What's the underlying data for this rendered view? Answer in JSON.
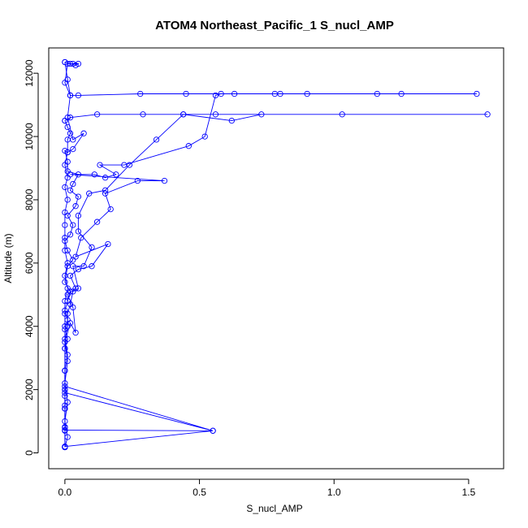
{
  "chart_data": {
    "type": "line",
    "title": "ATOM4 Northeast_Pacific_1 S_nucl_AMP",
    "xlabel": "S_nucl_AMP",
    "ylabel": "Altitude (m)",
    "xlim": [
      -0.06,
      1.63
    ],
    "ylim": [
      -500,
      12800
    ],
    "x_ticks": [
      0.0,
      0.5,
      1.0,
      1.5
    ],
    "x_tick_labels": [
      "0.0",
      "0.5",
      "1.0",
      "1.5"
    ],
    "y_ticks": [
      0,
      2000,
      4000,
      6000,
      8000,
      10000,
      12000
    ],
    "y_tick_labels": [
      "0",
      "2000",
      "4000",
      "6000",
      "8000",
      "10000",
      "12000"
    ],
    "grid": false,
    "line_color": "#0000ff",
    "marker": "open-circle",
    "series": [
      {
        "values": [
          {
            "x": 0.0,
            "y": 180
          },
          {
            "x": 0.0,
            "y": 200
          },
          {
            "x": 0.55,
            "y": 700
          },
          {
            "x": 0.0,
            "y": 720
          },
          {
            "x": 0.0,
            "y": 820
          },
          {
            "x": 0.0,
            "y": 1400
          },
          {
            "x": 0.0,
            "y": 1500
          },
          {
            "x": 0.0,
            "y": 1900
          },
          {
            "x": 0.55,
            "y": 700
          },
          {
            "x": 0.0,
            "y": 2100
          },
          {
            "x": 0.0,
            "y": 2600
          },
          {
            "x": 0.01,
            "y": 3100
          },
          {
            "x": 0.0,
            "y": 3600
          },
          {
            "x": 0.01,
            "y": 4000
          },
          {
            "x": 0.01,
            "y": 4400
          },
          {
            "x": 0.02,
            "y": 4700
          },
          {
            "x": 0.03,
            "y": 5100
          },
          {
            "x": 0.05,
            "y": 5200
          },
          {
            "x": 0.03,
            "y": 5900
          },
          {
            "x": 0.07,
            "y": 5900
          },
          {
            "x": 0.1,
            "y": 6500
          },
          {
            "x": 0.05,
            "y": 7000
          },
          {
            "x": 0.05,
            "y": 7500
          },
          {
            "x": 0.09,
            "y": 8200
          },
          {
            "x": 0.15,
            "y": 8300
          },
          {
            "x": 0.24,
            "y": 9100
          },
          {
            "x": 0.34,
            "y": 9900
          },
          {
            "x": 0.44,
            "y": 10700
          },
          {
            "x": 0.62,
            "y": 10500
          },
          {
            "x": 0.73,
            "y": 10700
          },
          {
            "x": 1.03,
            "y": 10700
          },
          {
            "x": 1.57,
            "y": 10700
          },
          {
            "x": 0.56,
            "y": 10700
          },
          {
            "x": 0.44,
            "y": 10700
          },
          {
            "x": 0.29,
            "y": 10700
          },
          {
            "x": 0.12,
            "y": 10700
          },
          {
            "x": 0.02,
            "y": 10600
          },
          {
            "x": 0.0,
            "y": 10500
          }
        ]
      },
      {
        "values": [
          {
            "x": 0.0,
            "y": 10500
          },
          {
            "x": 0.01,
            "y": 10300
          },
          {
            "x": 0.02,
            "y": 10100
          },
          {
            "x": 0.01,
            "y": 9900
          },
          {
            "x": 0.01,
            "y": 9500
          },
          {
            "x": 0.0,
            "y": 9100
          },
          {
            "x": 0.01,
            "y": 8700
          },
          {
            "x": 0.0,
            "y": 8400
          },
          {
            "x": 0.01,
            "y": 8000
          },
          {
            "x": 0.0,
            "y": 7600
          },
          {
            "x": 0.0,
            "y": 7200
          },
          {
            "x": 0.0,
            "y": 6800
          },
          {
            "x": 0.0,
            "y": 6400
          },
          {
            "x": 0.01,
            "y": 6000
          },
          {
            "x": 0.0,
            "y": 5600
          },
          {
            "x": 0.01,
            "y": 5200
          },
          {
            "x": 0.0,
            "y": 4800
          },
          {
            "x": 0.0,
            "y": 4400
          },
          {
            "x": 0.0,
            "y": 4000
          },
          {
            "x": 0.01,
            "y": 3600
          },
          {
            "x": 0.0,
            "y": 3300
          },
          {
            "x": 0.0,
            "y": 2600
          },
          {
            "x": 0.0,
            "y": 2000
          },
          {
            "x": 0.0,
            "y": 1400
          },
          {
            "x": 0.0,
            "y": 700
          },
          {
            "x": 0.0,
            "y": 180
          }
        ]
      },
      {
        "values": [
          {
            "x": 0.0,
            "y": 180
          },
          {
            "x": 0.01,
            "y": 500
          },
          {
            "x": 0.0,
            "y": 1000
          },
          {
            "x": 0.01,
            "y": 1600
          },
          {
            "x": 0.0,
            "y": 2200
          },
          {
            "x": 0.01,
            "y": 2900
          },
          {
            "x": 0.0,
            "y": 3500
          },
          {
            "x": 0.02,
            "y": 4100
          },
          {
            "x": 0.04,
            "y": 3800
          },
          {
            "x": 0.03,
            "y": 4600
          },
          {
            "x": 0.01,
            "y": 5000
          },
          {
            "x": 0.04,
            "y": 5200
          },
          {
            "x": 0.02,
            "y": 5600
          },
          {
            "x": 0.05,
            "y": 5800
          },
          {
            "x": 0.1,
            "y": 5900
          },
          {
            "x": 0.16,
            "y": 6600
          },
          {
            "x": 0.04,
            "y": 6200
          },
          {
            "x": 0.06,
            "y": 6800
          },
          {
            "x": 0.12,
            "y": 7300
          },
          {
            "x": 0.17,
            "y": 7700
          },
          {
            "x": 0.15,
            "y": 8200
          },
          {
            "x": 0.27,
            "y": 8600
          },
          {
            "x": 0.37,
            "y": 8600
          },
          {
            "x": 0.02,
            "y": 8800
          },
          {
            "x": 0.11,
            "y": 8800
          },
          {
            "x": 0.15,
            "y": 8700
          },
          {
            "x": 0.19,
            "y": 8800
          },
          {
            "x": 0.13,
            "y": 9100
          },
          {
            "x": 0.22,
            "y": 9100
          },
          {
            "x": 0.46,
            "y": 9700
          },
          {
            "x": 0.52,
            "y": 10000
          },
          {
            "x": 0.56,
            "y": 11300
          },
          {
            "x": 0.58,
            "y": 11350
          },
          {
            "x": 0.63,
            "y": 11350
          },
          {
            "x": 0.78,
            "y": 11350
          },
          {
            "x": 0.9,
            "y": 11350
          },
          {
            "x": 1.16,
            "y": 11350
          },
          {
            "x": 1.25,
            "y": 11350
          },
          {
            "x": 1.53,
            "y": 11350
          },
          {
            "x": 0.8,
            "y": 11350
          },
          {
            "x": 0.45,
            "y": 11350
          },
          {
            "x": 0.28,
            "y": 11350
          },
          {
            "x": 0.05,
            "y": 11300
          },
          {
            "x": 0.02,
            "y": 11300
          },
          {
            "x": 0.0,
            "y": 11700
          },
          {
            "x": 0.01,
            "y": 12300
          },
          {
            "x": 0.03,
            "y": 12300
          },
          {
            "x": 0.05,
            "y": 12300
          },
          {
            "x": 0.04,
            "y": 12250
          },
          {
            "x": 0.02,
            "y": 12300
          },
          {
            "x": 0.0,
            "y": 12350
          }
        ]
      },
      {
        "values": [
          {
            "x": 0.0,
            "y": 12350
          },
          {
            "x": 0.01,
            "y": 11800
          },
          {
            "x": 0.02,
            "y": 11300
          },
          {
            "x": 0.01,
            "y": 10600
          },
          {
            "x": 0.03,
            "y": 9900
          },
          {
            "x": 0.07,
            "y": 10100
          },
          {
            "x": 0.03,
            "y": 9600
          },
          {
            "x": 0.01,
            "y": 9500
          },
          {
            "x": 0.0,
            "y": 9550
          },
          {
            "x": 0.01,
            "y": 9200
          },
          {
            "x": 0.01,
            "y": 8900
          },
          {
            "x": 0.05,
            "y": 8800
          },
          {
            "x": 0.03,
            "y": 8500
          },
          {
            "x": 0.02,
            "y": 8300
          },
          {
            "x": 0.05,
            "y": 8100
          },
          {
            "x": 0.04,
            "y": 7800
          },
          {
            "x": 0.01,
            "y": 7500
          },
          {
            "x": 0.03,
            "y": 7200
          },
          {
            "x": 0.02,
            "y": 6900
          },
          {
            "x": 0.0,
            "y": 6700
          },
          {
            "x": 0.01,
            "y": 6400
          },
          {
            "x": 0.03,
            "y": 6100
          },
          {
            "x": 0.01,
            "y": 5900
          },
          {
            "x": 0.0,
            "y": 5400
          },
          {
            "x": 0.02,
            "y": 5100
          },
          {
            "x": 0.01,
            "y": 4800
          },
          {
            "x": 0.0,
            "y": 4500
          },
          {
            "x": 0.01,
            "y": 4200
          },
          {
            "x": 0.0,
            "y": 3900
          },
          {
            "x": 0.0,
            "y": 3300
          },
          {
            "x": 0.0,
            "y": 2600
          },
          {
            "x": 0.0,
            "y": 2000
          },
          {
            "x": 0.0,
            "y": 1800
          },
          {
            "x": 0.0,
            "y": 1400
          },
          {
            "x": 0.0,
            "y": 800
          },
          {
            "x": 0.0,
            "y": 180
          }
        ]
      }
    ]
  }
}
